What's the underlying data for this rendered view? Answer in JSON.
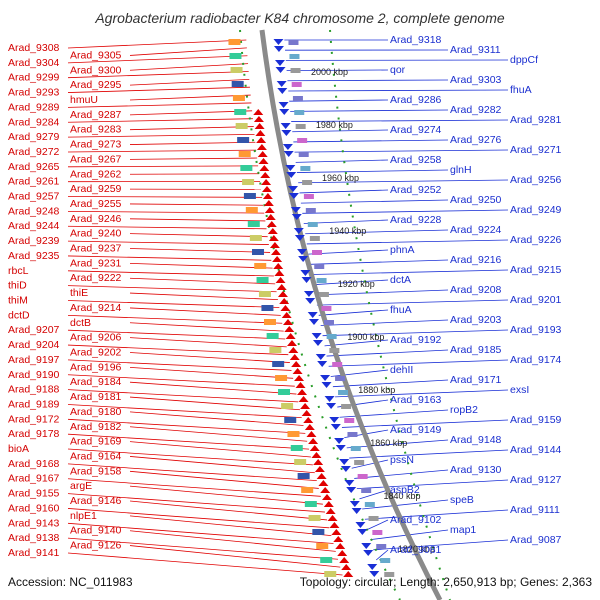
{
  "title": "Agrobacterium radiobacter K84 chromosome 2, complete genome",
  "footer": {
    "accession": "Accession: NC_011983",
    "summary": "Topology: circular; Length: 2,650,913 bp; Genes: 2,363"
  },
  "colors": {
    "forward": "#e00000",
    "reverse": "#1a2fd6",
    "ring": "#7a7a7a",
    "dots": "#1f8c1f"
  },
  "kbp_labels": [
    "2000 kbp",
    "1980 kbp",
    "1960 kbp",
    "1940 kbp",
    "1920 kbp",
    "1900 kbp",
    "1880 kbp",
    "1860 kbp",
    "1840 kbp",
    "1820 kbp"
  ],
  "left_labels": [
    "Arad_9308",
    "Arad_9305",
    "Arad_9304",
    "Arad_9300",
    "Arad_9299",
    "Arad_9295",
    "Arad_9293",
    "hmuU",
    "Arad_9289",
    "Arad_9287",
    "Arad_9284",
    "Arad_9283",
    "Arad_9279",
    "Arad_9273",
    "Arad_9272",
    "Arad_9267",
    "Arad_9265",
    "Arad_9262",
    "Arad_9261",
    "Arad_9259",
    "Arad_9257",
    "Arad_9255",
    "Arad_9248",
    "Arad_9246",
    "Arad_9244",
    "Arad_9240",
    "Arad_9239",
    "Arad_9237",
    "Arad_9235",
    "Arad_9231",
    "rbcL",
    "Arad_9222",
    "thiD",
    "thiE",
    "thiM",
    "Arad_9214",
    "dctD",
    "dctB",
    "Arad_9207",
    "Arad_9206",
    "Arad_9204",
    "Arad_9202",
    "Arad_9197",
    "Arad_9196",
    "Arad_9190",
    "Arad_9184",
    "Arad_9188",
    "Arad_9181",
    "Arad_9189",
    "Arad_9180",
    "Arad_9172",
    "Arad_9182",
    "Arad_9178",
    "Arad_9169",
    "bioA",
    "Arad_9164",
    "Arad_9168",
    "Arad_9158",
    "Arad_9167",
    "argE",
    "Arad_9155",
    "Arad_9146",
    "Arad_9160",
    "nlpE1",
    "Arad_9143",
    "Arad_9140",
    "Arad_9138",
    "Arad_9126",
    "Arad_9141"
  ],
  "right_labels": [
    "Arad_9318",
    "Arad_9311",
    "dppCf",
    "qor",
    "Arad_9303",
    "fhuA",
    "Arad_9286",
    "Arad_9282",
    "Arad_9281",
    "Arad_9274",
    "Arad_9276",
    "Arad_9271",
    "Arad_9258",
    "glnH",
    "Arad_9256",
    "Arad_9252",
    "Arad_9250",
    "Arad_9249",
    "Arad_9228",
    "Arad_9224",
    "Arad_9226",
    "phnA",
    "Arad_9216",
    "Arad_9215",
    "dctA",
    "Arad_9208",
    "Arad_9201",
    "fhuA",
    "Arad_9203",
    "Arad_9193",
    "Arad_9192",
    "Arad_9185",
    "Arad_9174",
    "dehII",
    "Arad_9171",
    "exsI",
    "Arad_9163",
    "ropB2",
    "Arad_9159",
    "Arad_9149",
    "Arad_9148",
    "Arad_9144",
    "pssN",
    "Arad_9130",
    "Arad_9127",
    "aspB2",
    "speB",
    "Arad_9111",
    "Arad_9102",
    "map1",
    "Arad_9087",
    "Arad_9081"
  ]
}
